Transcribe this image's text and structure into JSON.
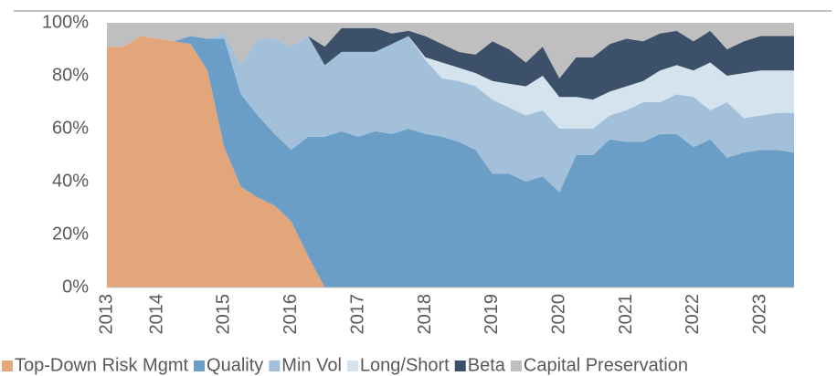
{
  "chart_data": {
    "type": "stacked_area",
    "categories": [
      "2013",
      null,
      null,
      "2014",
      null,
      null,
      null,
      "2015",
      null,
      null,
      null,
      "2016",
      null,
      null,
      null,
      "2017",
      null,
      null,
      null,
      "2018",
      null,
      null,
      null,
      "2019",
      null,
      null,
      null,
      "2020",
      null,
      null,
      null,
      "2021",
      null,
      null,
      null,
      "2022",
      null,
      null,
      null,
      "2023",
      null,
      null
    ],
    "series": [
      {
        "name": "Top-Down Risk Mgmt",
        "color": "#e3a57a",
        "values": [
          91,
          91,
          95,
          94,
          93,
          92,
          82,
          53,
          38,
          34,
          31,
          25,
          12,
          0,
          0,
          0,
          0,
          0,
          0,
          0,
          0,
          0,
          0,
          0,
          0,
          0,
          0,
          0,
          0,
          0,
          0,
          0,
          0,
          0,
          0,
          0,
          0,
          0,
          0,
          0,
          0,
          0
        ]
      },
      {
        "name": "Quality",
        "color": "#6a9ec6",
        "values": [
          0,
          0,
          0,
          0,
          0,
          3,
          12,
          41,
          35,
          31,
          27,
          27,
          45,
          57,
          59,
          57,
          59,
          58,
          60,
          58,
          57,
          55,
          52,
          43,
          43,
          40,
          42,
          36,
          50,
          50,
          56,
          55,
          55,
          58,
          58,
          53,
          56,
          49,
          51,
          52,
          52,
          51
        ]
      },
      {
        "name": "Min Vol",
        "color": "#a2c0da",
        "values": [
          0,
          0,
          0,
          0,
          0,
          0,
          0,
          2,
          11,
          29,
          36,
          39,
          38,
          27,
          30,
          32,
          30,
          34,
          35,
          28,
          22,
          23,
          24,
          28,
          25,
          25,
          25,
          24,
          10,
          10,
          9,
          12,
          15,
          12,
          15,
          19,
          11,
          21,
          13,
          13,
          14,
          15
        ]
      },
      {
        "name": "Long/Short",
        "color": "#d5e3ef",
        "values": [
          0,
          0,
          0,
          0,
          0,
          0,
          0,
          0,
          0,
          0,
          0,
          0,
          0,
          0,
          0,
          0,
          0,
          0,
          0,
          1,
          6,
          5,
          5,
          7,
          9,
          11,
          13,
          12,
          12,
          11,
          9,
          9,
          8,
          12,
          11,
          10,
          18,
          10,
          17,
          17,
          16,
          16
        ]
      },
      {
        "name": "Beta",
        "color": "#3c5069",
        "values": [
          0,
          0,
          0,
          0,
          0,
          0,
          0,
          0,
          0,
          0,
          0,
          0,
          0,
          7,
          9,
          9,
          9,
          4,
          2,
          8,
          7,
          6,
          7,
          15,
          13,
          9,
          11,
          7,
          15,
          16,
          18,
          18,
          15,
          14,
          13,
          11,
          12,
          10,
          12,
          13,
          13,
          13
        ]
      },
      {
        "name": "Capital Preservation",
        "color": "#bfbfbf",
        "values": [
          9,
          9,
          5,
          6,
          7,
          5,
          6,
          4,
          16,
          6,
          6,
          9,
          5,
          9,
          2,
          2,
          2,
          4,
          3,
          5,
          8,
          11,
          12,
          7,
          10,
          15,
          9,
          21,
          13,
          13,
          8,
          6,
          7,
          4,
          3,
          7,
          3,
          10,
          7,
          5,
          5,
          5
        ]
      }
    ],
    "ylim": [
      0,
      100
    ],
    "yticks": [
      {
        "value": 0,
        "label": "0%"
      },
      {
        "value": 20,
        "label": "20%"
      },
      {
        "value": 40,
        "label": "40%"
      },
      {
        "value": 60,
        "label": "60%"
      },
      {
        "value": 80,
        "label": "80%"
      },
      {
        "value": 100,
        "label": "100%"
      }
    ],
    "legend": "bottom"
  }
}
